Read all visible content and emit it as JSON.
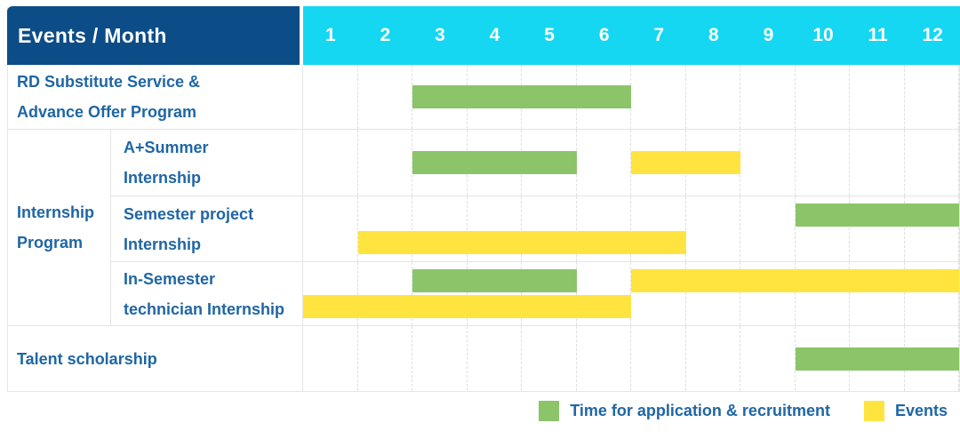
{
  "colors": {
    "header_bg": "#0c4d87",
    "months_bg": "#15d7f1",
    "green": "#8cc46a",
    "yellow": "#ffe440",
    "label_text": "#2066a4",
    "grid": "#e5e5e5"
  },
  "header": {
    "title": "Events / Month"
  },
  "chart_data": {
    "type": "gantt",
    "title": "Events / Month",
    "x_unit": "month",
    "x_range": [
      1,
      12
    ],
    "months": [
      "1",
      "2",
      "3",
      "4",
      "5",
      "6",
      "7",
      "8",
      "9",
      "10",
      "11",
      "12"
    ],
    "grid": "dashed-vertical",
    "group_label": "Internship\nProgram",
    "rows": [
      {
        "label": "RD Substitute Service &\nAdvance Offer Program",
        "group": null,
        "bars": [
          {
            "type": "green",
            "start": 3,
            "end": 6,
            "line": "center"
          }
        ]
      },
      {
        "label": "A+Summer\nInternship",
        "group": "Internship Program",
        "bars": [
          {
            "type": "green",
            "start": 3,
            "end": 5,
            "line": "center"
          },
          {
            "type": "yellow",
            "start": 7,
            "end": 8,
            "line": "center"
          }
        ]
      },
      {
        "label": "Semester project\nInternship",
        "group": "Internship Program",
        "bars": [
          {
            "type": "green",
            "start": 10,
            "end": 12,
            "line": "top"
          },
          {
            "type": "yellow",
            "start": 2,
            "end": 7,
            "line": "bottom"
          }
        ]
      },
      {
        "label": "In-Semester\ntechnician Internship",
        "group": "Internship Program",
        "bars": [
          {
            "type": "green",
            "start": 3,
            "end": 5,
            "line": "top"
          },
          {
            "type": "yellow",
            "start": 7,
            "end": 12,
            "line": "top"
          },
          {
            "type": "yellow",
            "start": 1,
            "end": 6,
            "line": "bottom"
          }
        ]
      },
      {
        "label": "Talent scholarship",
        "group": null,
        "bars": [
          {
            "type": "green",
            "start": 10,
            "end": 12,
            "line": "center"
          }
        ]
      }
    ],
    "legend": [
      {
        "key": "green",
        "label": "Time for application & recruitment"
      },
      {
        "key": "yellow",
        "label": "Events"
      }
    ],
    "legend_position": "bottom-right"
  }
}
